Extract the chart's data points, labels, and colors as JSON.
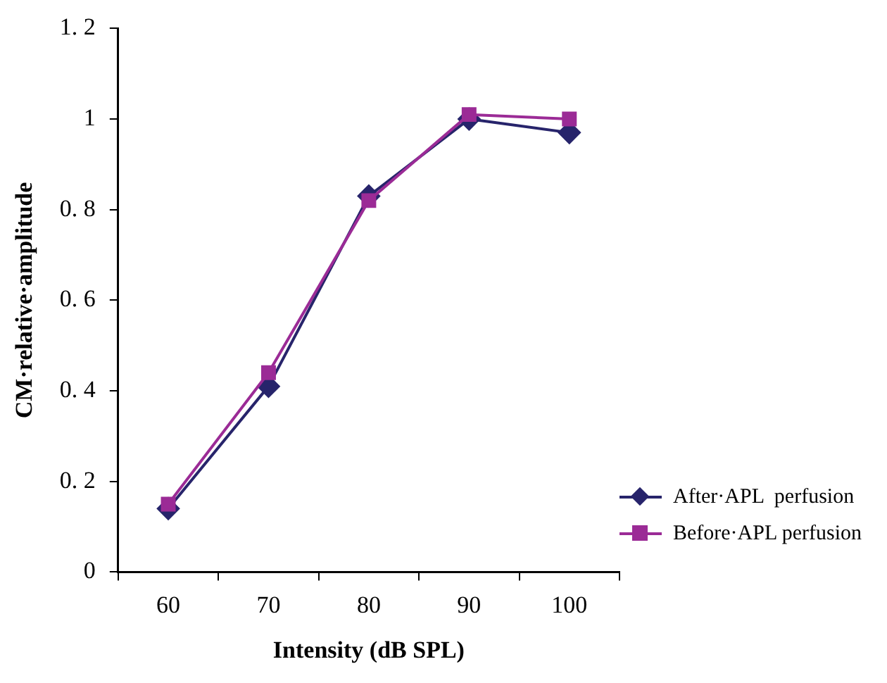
{
  "chart_data": {
    "type": "line",
    "xlabel": "Intensity (dB SPL)",
    "ylabel": "CM·relative·amplitude",
    "categories": [
      "60",
      "70",
      "80",
      "90",
      "100"
    ],
    "series": [
      {
        "name": "After·APL  perfusion",
        "color": "#27246b",
        "marker": "diamond",
        "values": [
          0.14,
          0.41,
          0.83,
          1.0,
          0.97
        ]
      },
      {
        "name": "Before·APL perfusion",
        "color": "#9b2b96",
        "marker": "square",
        "values": [
          0.15,
          0.44,
          0.82,
          1.01,
          1.0
        ]
      }
    ],
    "ylim": [
      0,
      1.2
    ],
    "yticks": [
      0,
      {
        "value": 0.2,
        "label": "0. 2"
      },
      {
        "value": 0.4,
        "label": "0. 4"
      },
      {
        "value": 0.6,
        "label": "0. 6"
      },
      {
        "value": 0.8,
        "label": "0. 8"
      },
      1,
      {
        "value": 1.2,
        "label": "1. 2"
      }
    ],
    "grid": false,
    "legend": "right",
    "line_style": "solid"
  }
}
